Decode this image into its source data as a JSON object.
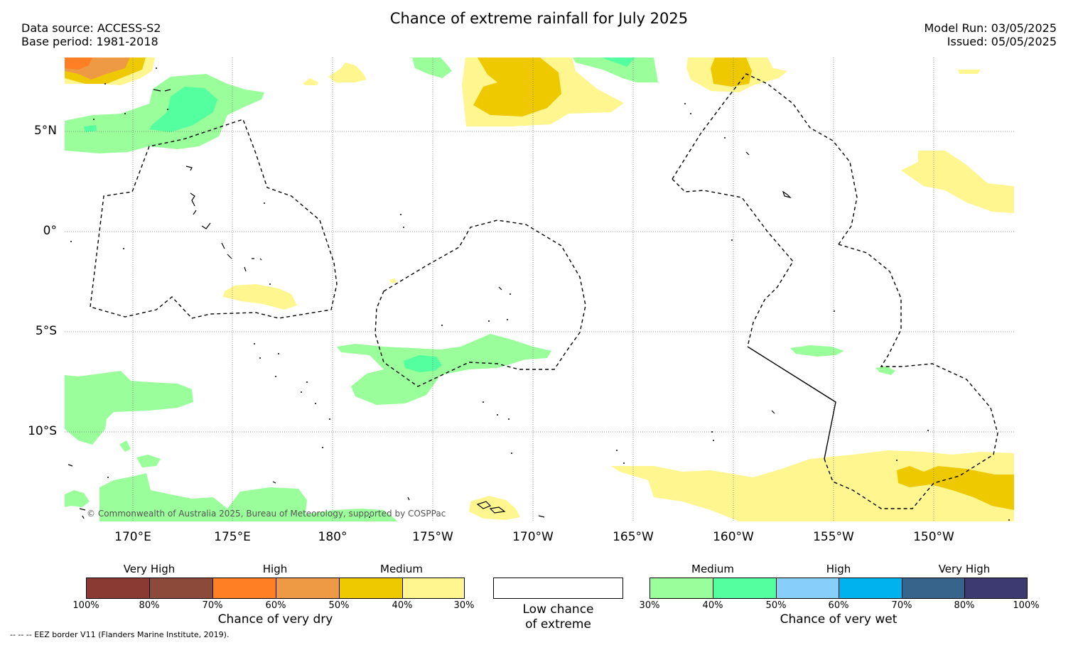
{
  "header": {
    "title": "Chance of extreme rainfall for July 2025",
    "data_source": "Data source: ACCESS-S2",
    "base_period": "Base period: 1981-2018",
    "model_run": "Model Run: 03/05/2025",
    "issued": "Issued: 05/05/2025"
  },
  "map": {
    "lat_labels": [
      "5°N",
      "0°",
      "5°S",
      "10°S"
    ],
    "lon_labels": [
      "170°E",
      "175°E",
      "180°",
      "175°W",
      "170°W",
      "165°W",
      "160°W",
      "155°W",
      "150°W"
    ],
    "copyright": "© Commonwealth of Australia 2025, Bureau of Meteorology, supported by COSPPac"
  },
  "legend": {
    "dry": {
      "groups": [
        "Very High",
        "High",
        "Medium"
      ],
      "ticks": [
        "100%",
        "80%",
        "70%",
        "60%",
        "50%",
        "40%",
        "30%"
      ],
      "colors": [
        "#8b3a33",
        "#8b4a3a",
        "#ff7f24",
        "#ee9a45",
        "#eec900",
        "#fff68f"
      ],
      "caption": "Chance of very dry"
    },
    "low": {
      "caption_line1": "Low chance",
      "caption_line2": "of extreme"
    },
    "wet": {
      "groups": [
        "Medium",
        "High",
        "Very High"
      ],
      "ticks": [
        "30%",
        "40%",
        "50%",
        "60%",
        "70%",
        "80%",
        "100%"
      ],
      "colors": [
        "#9aff9a",
        "#54ff9f",
        "#87cefa",
        "#00b2ee",
        "#36648b",
        "#3d3a72"
      ],
      "caption": "Chance of very wet"
    }
  },
  "footer": {
    "eez_note": "--  --  -- EEZ border V11 (Flanders Marine Institute, 2019)."
  }
}
